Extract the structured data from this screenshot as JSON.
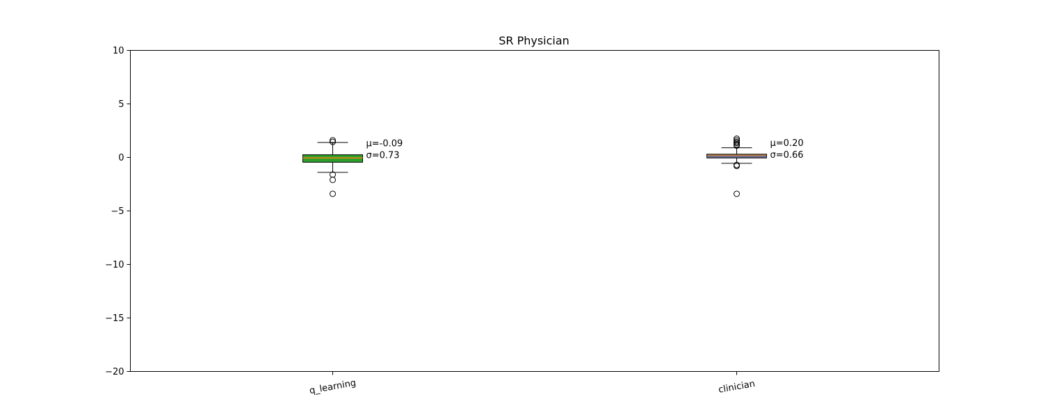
{
  "chart_data": {
    "type": "box",
    "title": "SR Physician",
    "xlabel": "",
    "ylabel": "",
    "ylim": [
      -20,
      10
    ],
    "yticks": [
      10,
      5,
      0,
      -5,
      -10,
      -15,
      -20
    ],
    "ytick_labels": [
      "10",
      "5",
      "0",
      "−5",
      "−10",
      "−15",
      "−20"
    ],
    "grid": false,
    "categories": [
      "q_learning",
      "clinician"
    ],
    "boxes": [
      {
        "category": "q_learning",
        "q1": -0.45,
        "median": -0.05,
        "q3": 0.25,
        "whisker_low": -1.4,
        "whisker_high": 1.4,
        "outliers": [
          1.6,
          1.45,
          -1.6,
          -2.1,
          -3.4
        ],
        "fill": "#2ca02c",
        "median_color": "#ff7f0e",
        "annotation": [
          "μ=-0.09",
          "σ=0.73"
        ]
      },
      {
        "category": "clinician",
        "q1": -0.05,
        "median": 0.05,
        "q3": 0.3,
        "whisker_low": -0.55,
        "whisker_high": 0.9,
        "outliers": [
          1.75,
          1.6,
          1.45,
          1.35,
          1.2,
          1.1,
          -0.7,
          -0.8,
          -3.4
        ],
        "fill": "#b07a4f",
        "median_color": "#4f6bb0",
        "annotation": [
          "μ=0.20",
          "σ=0.66"
        ]
      }
    ]
  }
}
